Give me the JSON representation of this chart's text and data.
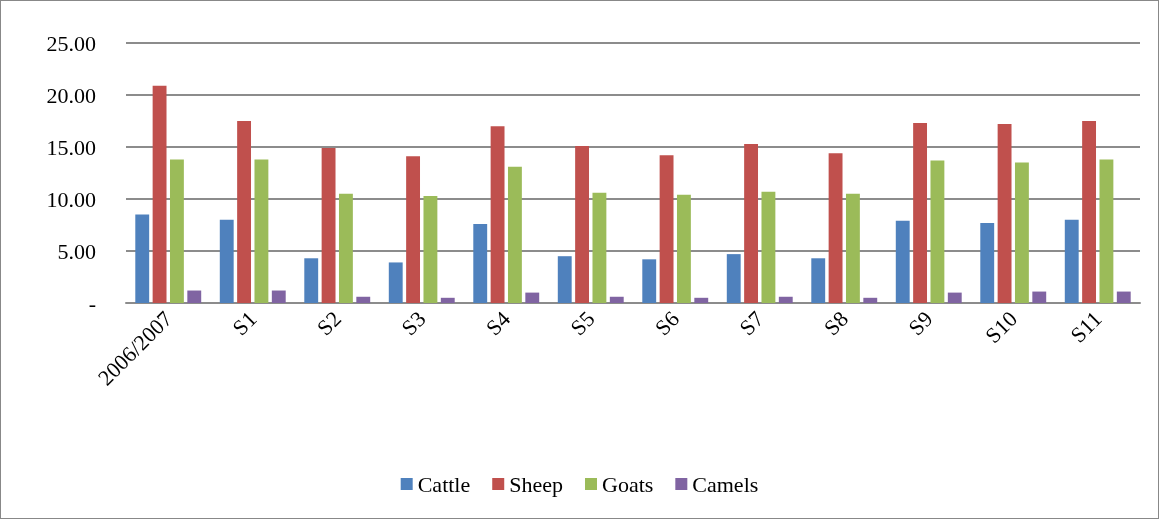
{
  "chart_data": {
    "type": "bar",
    "categories": [
      "2006/2007",
      "S1",
      "S2",
      "S3",
      "S4",
      "S5",
      "S6",
      "S7",
      "S8",
      "S9",
      "S10",
      "S11"
    ],
    "series": [
      {
        "name": "Cattle",
        "color": "#4f81bd",
        "values": [
          8.5,
          8.0,
          4.3,
          3.9,
          7.6,
          4.5,
          4.2,
          4.7,
          4.3,
          7.9,
          7.7,
          8.0
        ]
      },
      {
        "name": "Sheep",
        "color": "#c0504d",
        "values": [
          20.9,
          17.5,
          14.9,
          14.1,
          17.0,
          15.1,
          14.2,
          15.3,
          14.4,
          17.3,
          17.2,
          17.5
        ]
      },
      {
        "name": "Goats",
        "color": "#9bbb59",
        "values": [
          13.8,
          13.8,
          10.5,
          10.3,
          13.1,
          10.6,
          10.4,
          10.7,
          10.5,
          13.7,
          13.5,
          13.8
        ]
      },
      {
        "name": "Camels",
        "color": "#8064a2",
        "values": [
          1.2,
          1.2,
          0.6,
          0.5,
          1.0,
          0.6,
          0.5,
          0.6,
          0.5,
          1.0,
          1.1,
          1.1
        ]
      }
    ],
    "ylim": [
      0,
      25
    ],
    "yticks": [
      {
        "value": 0,
        "label": "-"
      },
      {
        "value": 5,
        "label": "5.00"
      },
      {
        "value": 10,
        "label": "10.00"
      },
      {
        "value": 15,
        "label": "15.00"
      },
      {
        "value": 20,
        "label": "20.00"
      },
      {
        "value": 25,
        "label": "25.00"
      }
    ],
    "grid": "y",
    "legend": "bottom"
  }
}
